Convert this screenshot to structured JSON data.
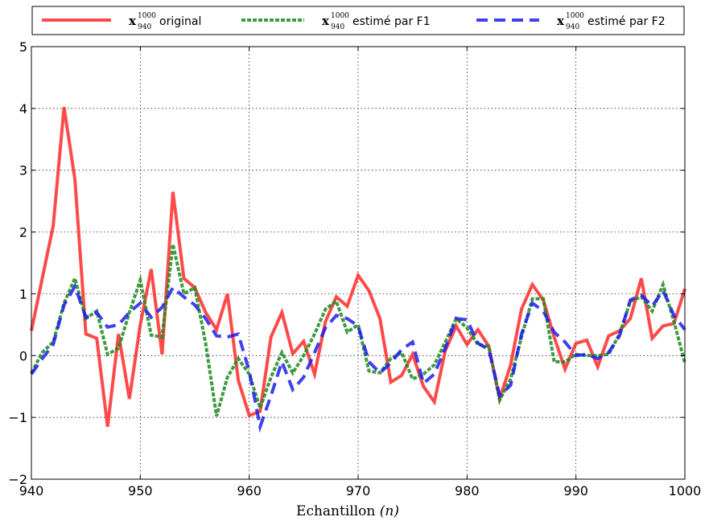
{
  "chart_data": {
    "type": "line",
    "title": "",
    "xlabel": "Echantillon",
    "xlabel_var": "(n)",
    "ylabel": "",
    "xlim": [
      940,
      1000
    ],
    "ylim": [
      -2,
      5
    ],
    "xticks": [
      "940",
      "950",
      "960",
      "970",
      "980",
      "990",
      "1000"
    ],
    "yticks": [
      "−2",
      "−1",
      "0",
      "1",
      "2",
      "3",
      "4",
      "5"
    ],
    "grid": true,
    "legend_position": "top",
    "legend_symbol": "x",
    "legend_superscript": "1000",
    "legend_subscript": "940",
    "x": [
      940,
      941,
      942,
      943,
      944,
      945,
      946,
      947,
      948,
      949,
      950,
      951,
      952,
      953,
      954,
      955,
      956,
      957,
      958,
      959,
      960,
      961,
      962,
      963,
      964,
      965,
      966,
      967,
      968,
      969,
      970,
      971,
      972,
      973,
      974,
      975,
      976,
      977,
      978,
      979,
      980,
      981,
      982,
      983,
      984,
      985,
      986,
      987,
      988,
      989,
      990,
      991,
      992,
      993,
      994,
      995,
      996,
      997,
      998,
      999,
      1000
    ],
    "series": [
      {
        "name": "original",
        "color": "#ff2a2a",
        "style": "solid",
        "values": [
          0.4,
          1.25,
          2.1,
          4.02,
          2.85,
          0.35,
          0.28,
          -1.15,
          0.35,
          -0.7,
          0.5,
          1.4,
          0.02,
          2.65,
          1.25,
          1.1,
          0.7,
          0.42,
          1.0,
          -0.4,
          -0.97,
          -0.9,
          0.3,
          0.7,
          0.03,
          0.23,
          -0.3,
          0.55,
          0.95,
          0.8,
          1.3,
          1.05,
          0.6,
          -0.43,
          -0.32,
          0.02,
          -0.5,
          -0.75,
          0.08,
          0.48,
          0.18,
          0.42,
          0.15,
          -0.7,
          -0.15,
          0.75,
          1.15,
          0.9,
          0.3,
          -0.22,
          0.2,
          0.25,
          -0.18,
          0.32,
          0.4,
          0.6,
          1.25,
          0.28,
          0.48,
          0.52,
          1.08
        ]
      },
      {
        "name": "estimé par F1",
        "color": "#1f8a1f",
        "style": "dashed",
        "values": [
          -0.28,
          0.05,
          0.22,
          0.85,
          1.25,
          0.6,
          0.72,
          0.02,
          0.12,
          0.7,
          1.22,
          0.33,
          0.3,
          1.8,
          1.0,
          1.1,
          0.2,
          -0.98,
          -0.35,
          -0.05,
          -0.3,
          -0.85,
          -0.35,
          0.05,
          -0.28,
          0.0,
          0.35,
          0.75,
          0.88,
          0.38,
          0.5,
          -0.25,
          -0.28,
          -0.05,
          0.05,
          -0.38,
          -0.3,
          -0.15,
          0.22,
          0.6,
          0.45,
          0.18,
          0.15,
          -0.72,
          -0.38,
          0.3,
          0.92,
          0.92,
          -0.1,
          -0.1,
          0.02,
          0.0,
          0.0,
          0.02,
          0.35,
          0.88,
          0.95,
          0.72,
          1.15,
          0.55,
          -0.12
        ]
      },
      {
        "name": "estimé par F2",
        "color": "#1f1fee",
        "style": "dashed",
        "values": [
          -0.3,
          -0.05,
          0.18,
          0.82,
          1.12,
          0.62,
          0.7,
          0.46,
          0.5,
          0.7,
          0.85,
          0.62,
          0.78,
          1.1,
          0.95,
          0.82,
          0.6,
          0.32,
          0.3,
          0.35,
          -0.25,
          -1.15,
          -0.65,
          -0.1,
          -0.55,
          -0.35,
          0.05,
          0.45,
          0.65,
          0.6,
          0.48,
          -0.1,
          -0.28,
          -0.12,
          0.1,
          0.22,
          -0.45,
          -0.3,
          0.12,
          0.6,
          0.58,
          0.2,
          0.1,
          -0.65,
          -0.48,
          0.35,
          0.85,
          0.72,
          0.38,
          0.22,
          0.0,
          0.02,
          -0.05,
          0.05,
          0.32,
          0.9,
          0.98,
          0.8,
          1.05,
          0.65,
          0.42
        ]
      }
    ]
  }
}
